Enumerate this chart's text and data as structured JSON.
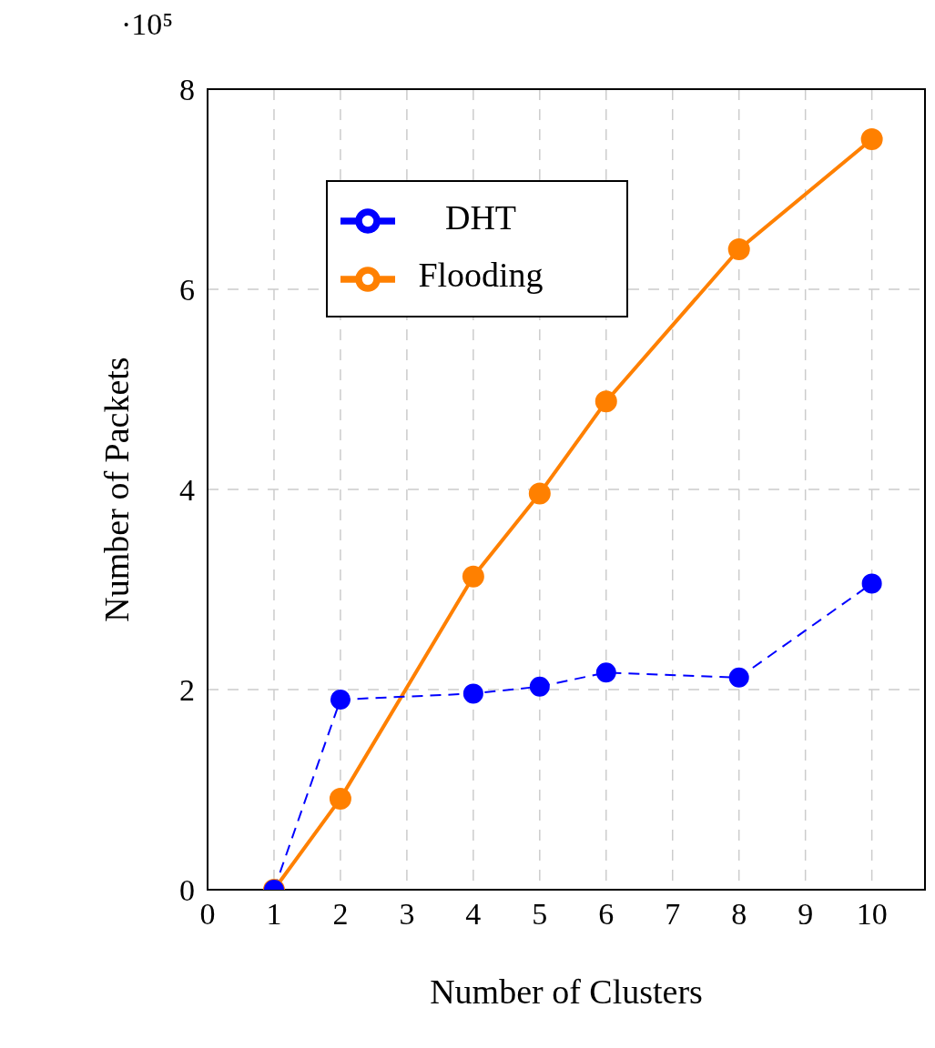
{
  "chart_data": {
    "type": "line",
    "xlabel": "Number of Clusters",
    "ylabel": "Number of Packets",
    "annotations": [
      "·10⁵"
    ],
    "xlim": [
      0,
      10.8
    ],
    "xticks": [
      0,
      1,
      2,
      3,
      4,
      5,
      6,
      7,
      8,
      9,
      10
    ],
    "ylim": [
      0,
      8
    ],
    "yticks": [
      0,
      2,
      4,
      6,
      8
    ],
    "grid": true,
    "legend": "top left",
    "marker": "circle",
    "series": [
      {
        "name": "Flooding",
        "color": "#ff8000",
        "x": [
          1,
          2,
          4,
          5,
          6,
          8,
          10
        ],
        "values": [
          0,
          0.91,
          3.13,
          3.96,
          4.88,
          6.4,
          7.5
        ],
        "line_style": "solid"
      },
      {
        "name": "DHT",
        "color": "#0000ff",
        "x": [
          1,
          2,
          4,
          5,
          6,
          8,
          10
        ],
        "values": [
          0,
          1.9,
          1.96,
          2.03,
          2.17,
          2.12,
          3.06
        ],
        "line_style": "dashed"
      }
    ]
  }
}
